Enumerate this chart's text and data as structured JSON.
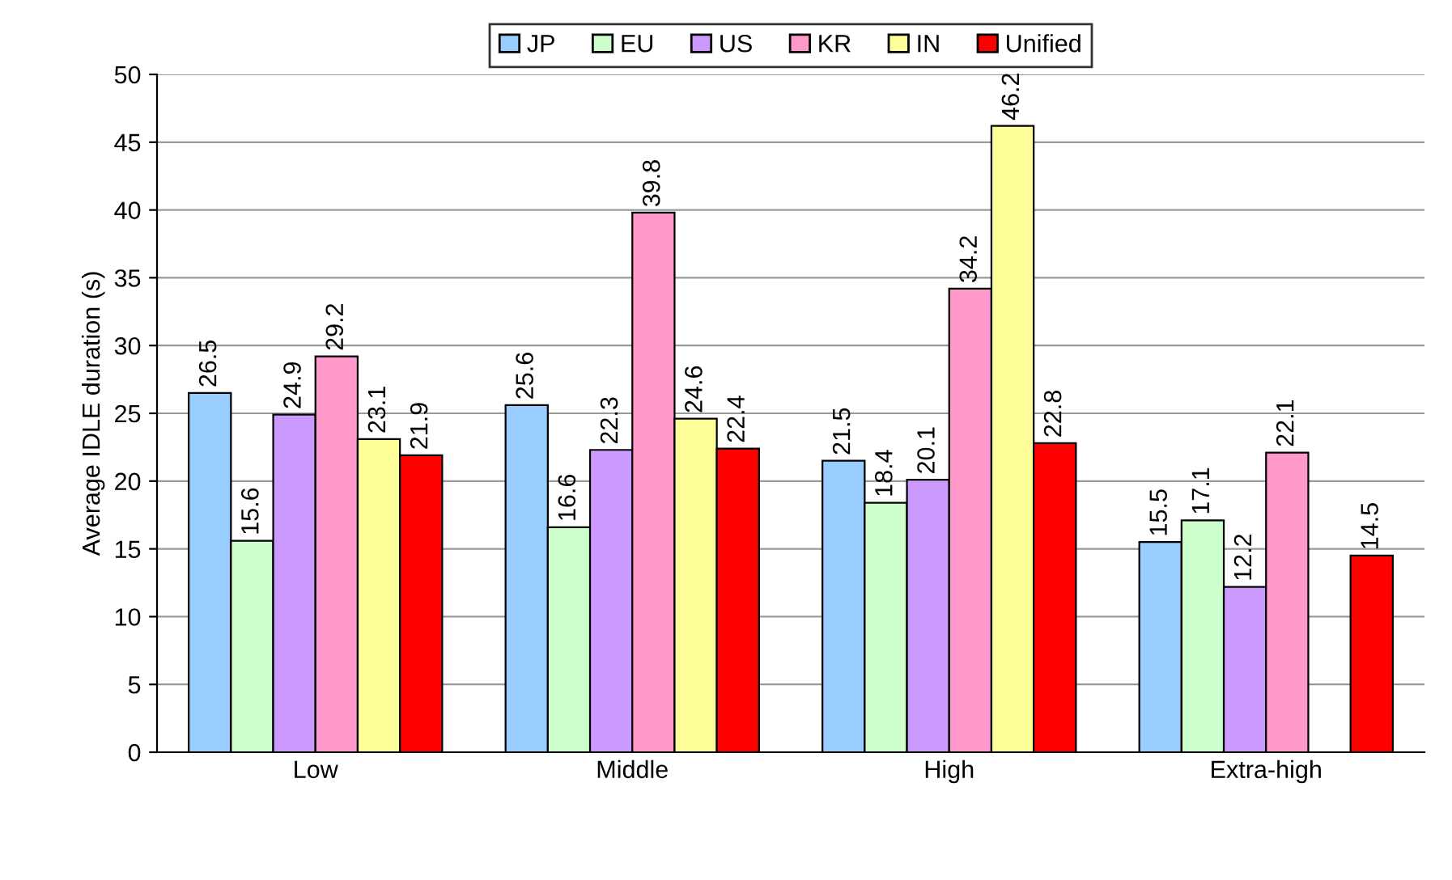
{
  "chart_data": {
    "type": "bar",
    "ylabel": "Average IDLE duration (s)",
    "categories": [
      "Low",
      "Middle",
      "High",
      "Extra-high"
    ],
    "series": [
      {
        "name": "JP",
        "color": "#99ccff",
        "values": [
          26.5,
          25.6,
          21.5,
          15.5
        ]
      },
      {
        "name": "EU",
        "color": "#ccffcc",
        "values": [
          15.6,
          16.6,
          18.4,
          17.1
        ]
      },
      {
        "name": "US",
        "color": "#cc99ff",
        "values": [
          24.9,
          22.3,
          20.1,
          12.2
        ]
      },
      {
        "name": "KR",
        "color": "#ff99cc",
        "values": [
          29.2,
          39.8,
          34.2,
          22.1
        ]
      },
      {
        "name": "IN",
        "color": "#ffff99",
        "values": [
          23.1,
          24.6,
          46.2,
          null
        ]
      },
      {
        "name": "Unified",
        "color": "#ff0000",
        "values": [
          21.9,
          22.4,
          22.8,
          14.5
        ]
      }
    ],
    "ylim": [
      0,
      50
    ],
    "yticks": [
      0,
      5,
      10,
      15,
      20,
      25,
      30,
      35,
      40,
      45,
      50
    ],
    "grid": "y",
    "legend": "top",
    "data_labels": true
  }
}
